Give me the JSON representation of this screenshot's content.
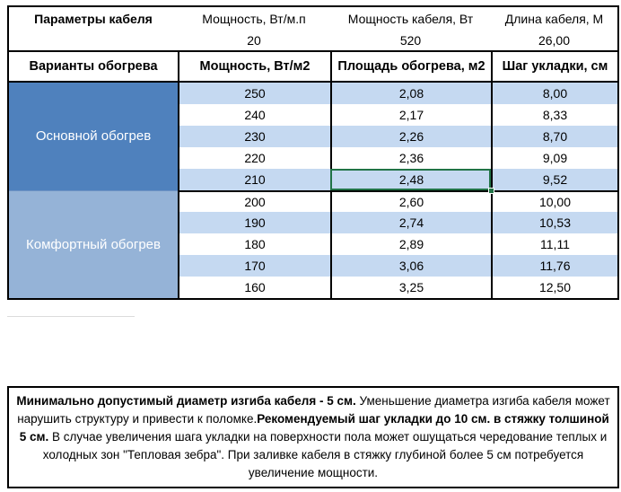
{
  "colors": {
    "group_main_bg": "#4F81BD",
    "group_comfort_bg": "#95B3D7",
    "row_alt_bg": "#C5D9F1",
    "grid_border": "#000000",
    "selection_green": "#217346",
    "group_text": "#FFFFFF"
  },
  "param_header": {
    "cells": [
      "Параметры кабеля",
      "Мощность, Вт/м.п",
      "Мощность кабеля, Вт",
      "Длина кабеля, М"
    ]
  },
  "param_values": {
    "cells": [
      "",
      "20",
      "520",
      "26,00"
    ]
  },
  "section_header": {
    "cells": [
      "Варианты обогрева",
      "Мощность, Вт/м2",
      "Площадь обогрева, м2",
      "Шаг укладки, см"
    ]
  },
  "sections": [
    {
      "label": "Основной обогрев",
      "rows": [
        [
          "250",
          "2,08",
          "8,00"
        ],
        [
          "240",
          "2,17",
          "8,33"
        ],
        [
          "230",
          "2,26",
          "8,70"
        ],
        [
          "220",
          "2,36",
          "9,09"
        ],
        [
          "210",
          "2,48",
          "9,52"
        ]
      ]
    },
    {
      "label": "Комфортный обогрев",
      "rows": [
        [
          "200",
          "2,60",
          "10,00"
        ],
        [
          "190",
          "2,74",
          "10,53"
        ],
        [
          "180",
          "2,89",
          "11,11"
        ],
        [
          "170",
          "3,06",
          "11,76"
        ],
        [
          "160",
          "3,25",
          "12,50"
        ]
      ]
    }
  ],
  "selection": {
    "value": "2,48"
  },
  "note": {
    "segments": [
      {
        "text": "Минимально допустимый диаметр изгиба кабеля - 5 см. ",
        "bold": true
      },
      {
        "text": " Уменьшение диаметра изгиба кабеля может нарушить структуру и привести к поломке.",
        "bold": false
      },
      {
        "text": "Рекомендуемый шаг укладки до 10 см. в стяжку толшиной 5 см.",
        "bold": true
      },
      {
        "text": " В  случае увеличения шага укладки на поверхности пола может ошущаться чередование теплых и холодных зон \"Тепловая зебра\". При заливке кабеля в стяжку глубиной более 5 см потребуется увеличение мощности.",
        "bold": false
      }
    ]
  }
}
